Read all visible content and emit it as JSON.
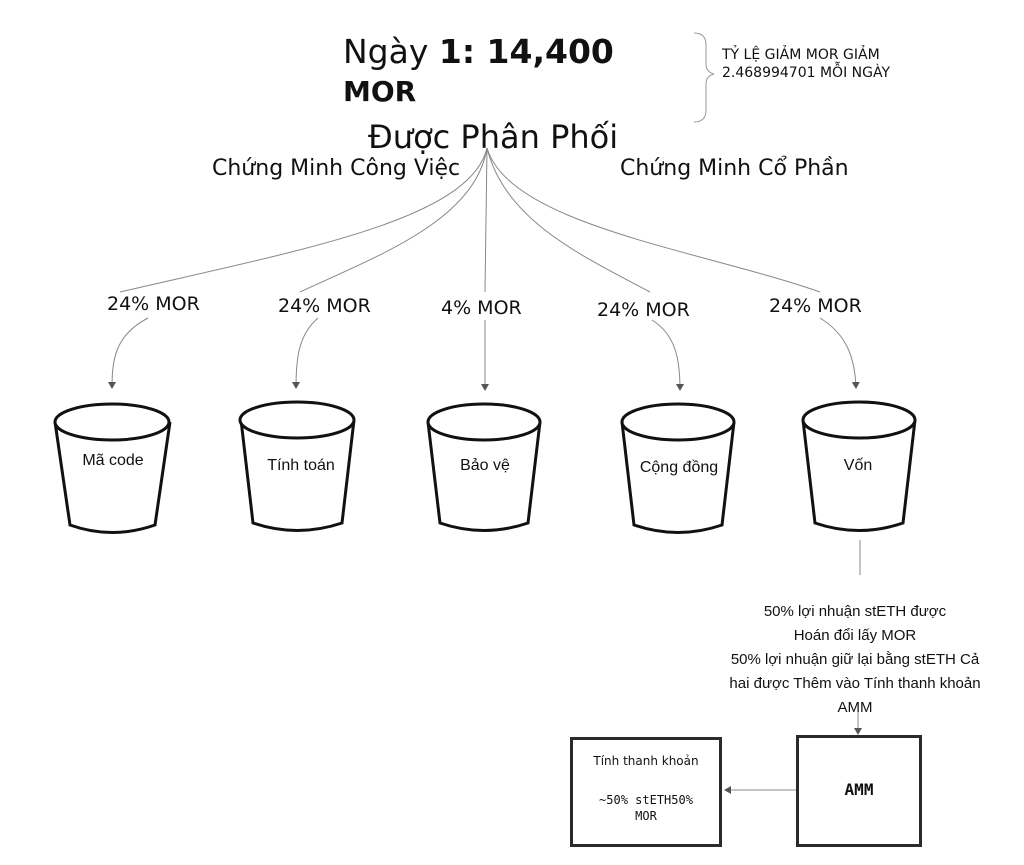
{
  "header": {
    "day_label": "Ngày ",
    "day_value": "1: 14,400",
    "unit": "MOR",
    "distributed": "Được Phân Phối"
  },
  "note": {
    "line1": "TỶ LỆ GIẢM MOR GIẢM",
    "line2": "2.468994701 MỖI NGÀY"
  },
  "branches": {
    "proof_of_work": "Chứng Minh Công Việc",
    "proof_of_stake": "Chứng Minh Cổ Phần"
  },
  "buckets": [
    {
      "percent": "24% MOR",
      "label": "Mã code"
    },
    {
      "percent": "24% MOR",
      "label": "Tính toán"
    },
    {
      "percent": "4% MOR",
      "label": "Bảo vệ"
    },
    {
      "percent": "24% MOR",
      "label": "Cộng đồng"
    },
    {
      "percent": "24% MOR",
      "label": "Vốn"
    }
  ],
  "capital_info": {
    "line1": "50% lợi nhuận stETH được",
    "line2": "Hoán đổi lấy MOR",
    "line3": "50% lợi nhuận giữ lại bằng stETH Cả",
    "line4": "hai được Thêm vào Tính thanh khoản",
    "line5": "AMM"
  },
  "liquidity_box": {
    "title": "Tính thanh khoản",
    "line1": "~50% stETH50%",
    "line2": "MOR"
  },
  "amm_box": {
    "label": "AMM"
  }
}
